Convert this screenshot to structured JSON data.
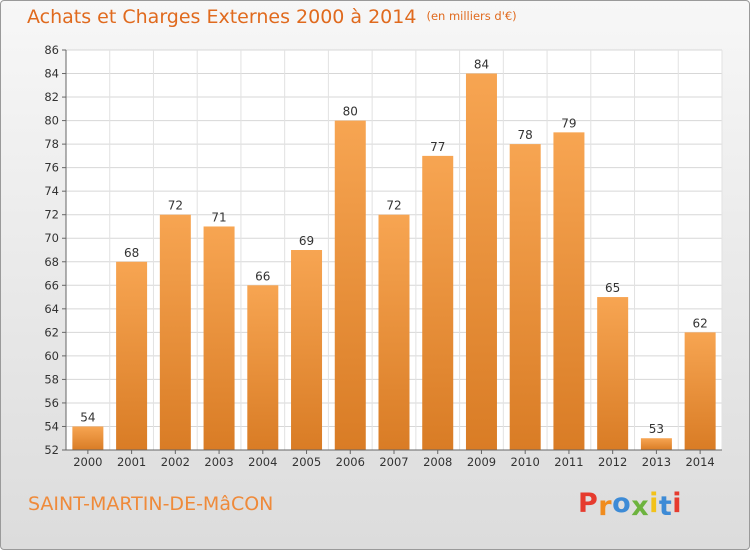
{
  "header": {
    "title": "Achats et Charges Externes 2000 à 2014",
    "unit": "(en milliers d'€)"
  },
  "footer": {
    "place": "SAINT-MARTIN-DE-MâCON",
    "brand": "Proxiti"
  },
  "colors": {
    "title": "#e06a1e",
    "place": "#ef8a3a",
    "bar_light": "#f7a552",
    "bar_dark": "#d97c25",
    "brand_letters": [
      "#e63b2e",
      "#f08c1e",
      "#3d8bd6",
      "#6db33f",
      "#f2c21a",
      "#3d8bd6",
      "#e63b2e"
    ]
  },
  "chart_data": {
    "type": "bar",
    "categories": [
      "2000",
      "2001",
      "2002",
      "2003",
      "2004",
      "2005",
      "2006",
      "2007",
      "2008",
      "2009",
      "2010",
      "2011",
      "2012",
      "2013",
      "2014"
    ],
    "values": [
      54,
      68,
      72,
      71,
      66,
      69,
      80,
      72,
      77,
      84,
      78,
      79,
      65,
      53,
      62
    ],
    "ylim": [
      52,
      86
    ],
    "yticks": [
      52,
      54,
      56,
      58,
      60,
      62,
      64,
      66,
      68,
      70,
      72,
      74,
      76,
      78,
      80,
      82,
      84,
      86
    ],
    "grid": true,
    "data_labels": true
  }
}
